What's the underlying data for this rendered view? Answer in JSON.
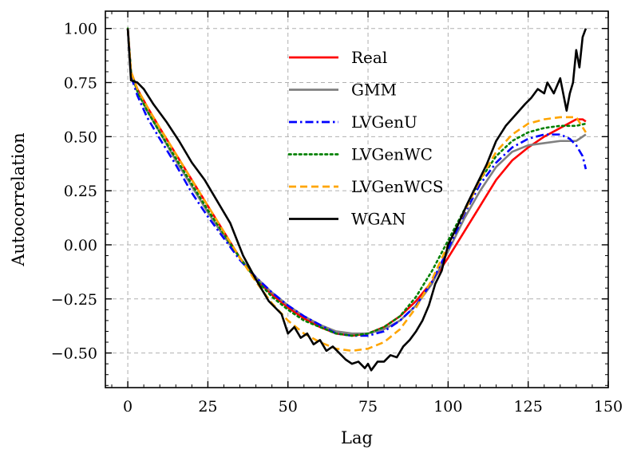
{
  "chart_data": {
    "type": "line",
    "title": "",
    "xlabel": "Lag",
    "ylabel": "Autocorrelation",
    "xlim": [
      -7,
      150
    ],
    "ylim": [
      -0.66,
      1.08
    ],
    "xticks": [
      0,
      25,
      50,
      75,
      100,
      125,
      150
    ],
    "xtick_labels": [
      "0",
      "25",
      "50",
      "75",
      "100",
      "125",
      "150"
    ],
    "yticks": [
      1.0,
      0.75,
      0.5,
      0.25,
      0.0,
      -0.25,
      -0.5
    ],
    "ytick_labels": [
      "1.00",
      "0.75",
      "0.50",
      "0.25",
      "0.00",
      "−0.25",
      "−0.50"
    ],
    "grid": true,
    "legend_position": "top-center",
    "series": [
      {
        "name": "Real",
        "color": "#ff0000",
        "style": "solid",
        "points": [
          [
            0,
            1.0
          ],
          [
            1,
            0.8
          ],
          [
            3,
            0.72
          ],
          [
            6,
            0.64
          ],
          [
            10,
            0.54
          ],
          [
            15,
            0.42
          ],
          [
            20,
            0.3
          ],
          [
            25,
            0.18
          ],
          [
            30,
            0.06
          ],
          [
            35,
            -0.06
          ],
          [
            40,
            -0.16
          ],
          [
            45,
            -0.23
          ],
          [
            50,
            -0.29
          ],
          [
            55,
            -0.34
          ],
          [
            60,
            -0.38
          ],
          [
            65,
            -0.41
          ],
          [
            70,
            -0.42
          ],
          [
            75,
            -0.41
          ],
          [
            80,
            -0.38
          ],
          [
            85,
            -0.33
          ],
          [
            90,
            -0.26
          ],
          [
            95,
            -0.17
          ],
          [
            100,
            -0.06
          ],
          [
            105,
            0.06
          ],
          [
            110,
            0.18
          ],
          [
            115,
            0.3
          ],
          [
            120,
            0.39
          ],
          [
            125,
            0.45
          ],
          [
            130,
            0.5
          ],
          [
            135,
            0.54
          ],
          [
            140,
            0.58
          ],
          [
            142,
            0.58
          ],
          [
            143,
            0.57
          ]
        ]
      },
      {
        "name": "GMM",
        "color": "#808080",
        "style": "solid",
        "points": [
          [
            0,
            1.0
          ],
          [
            1,
            0.79
          ],
          [
            3,
            0.71
          ],
          [
            6,
            0.62
          ],
          [
            10,
            0.52
          ],
          [
            15,
            0.39
          ],
          [
            20,
            0.27
          ],
          [
            25,
            0.15
          ],
          [
            30,
            0.04
          ],
          [
            35,
            -0.06
          ],
          [
            40,
            -0.15
          ],
          [
            45,
            -0.22
          ],
          [
            50,
            -0.28
          ],
          [
            55,
            -0.33
          ],
          [
            60,
            -0.37
          ],
          [
            65,
            -0.4
          ],
          [
            70,
            -0.41
          ],
          [
            75,
            -0.41
          ],
          [
            80,
            -0.39
          ],
          [
            85,
            -0.35
          ],
          [
            90,
            -0.28
          ],
          [
            95,
            -0.18
          ],
          [
            100,
            -0.03
          ],
          [
            105,
            0.12
          ],
          [
            110,
            0.25
          ],
          [
            115,
            0.36
          ],
          [
            120,
            0.43
          ],
          [
            125,
            0.46
          ],
          [
            130,
            0.47
          ],
          [
            135,
            0.48
          ],
          [
            140,
            0.48
          ],
          [
            143,
            0.51
          ]
        ]
      },
      {
        "name": "LVGenU",
        "color": "#0000ff",
        "style": "dashdot",
        "points": [
          [
            0,
            1.0
          ],
          [
            1,
            0.78
          ],
          [
            3,
            0.69
          ],
          [
            6,
            0.59
          ],
          [
            10,
            0.49
          ],
          [
            15,
            0.37
          ],
          [
            20,
            0.24
          ],
          [
            25,
            0.13
          ],
          [
            30,
            0.03
          ],
          [
            35,
            -0.07
          ],
          [
            40,
            -0.15
          ],
          [
            45,
            -0.22
          ],
          [
            50,
            -0.28
          ],
          [
            55,
            -0.33
          ],
          [
            60,
            -0.37
          ],
          [
            65,
            -0.41
          ],
          [
            70,
            -0.42
          ],
          [
            75,
            -0.42
          ],
          [
            80,
            -0.4
          ],
          [
            85,
            -0.35
          ],
          [
            90,
            -0.28
          ],
          [
            95,
            -0.17
          ],
          [
            100,
            -0.02
          ],
          [
            105,
            0.14
          ],
          [
            110,
            0.28
          ],
          [
            115,
            0.38
          ],
          [
            120,
            0.45
          ],
          [
            125,
            0.49
          ],
          [
            130,
            0.51
          ],
          [
            135,
            0.51
          ],
          [
            138,
            0.49
          ],
          [
            140,
            0.46
          ],
          [
            142,
            0.41
          ],
          [
            143,
            0.35
          ]
        ]
      },
      {
        "name": "LVGenWC",
        "color": "#008000",
        "style": "dotted",
        "points": [
          [
            0,
            1.0
          ],
          [
            1,
            0.8
          ],
          [
            3,
            0.71
          ],
          [
            6,
            0.62
          ],
          [
            10,
            0.52
          ],
          [
            15,
            0.4
          ],
          [
            20,
            0.28
          ],
          [
            25,
            0.16
          ],
          [
            30,
            0.05
          ],
          [
            35,
            -0.06
          ],
          [
            40,
            -0.16
          ],
          [
            45,
            -0.24
          ],
          [
            50,
            -0.3
          ],
          [
            55,
            -0.35
          ],
          [
            60,
            -0.38
          ],
          [
            65,
            -0.41
          ],
          [
            70,
            -0.42
          ],
          [
            75,
            -0.41
          ],
          [
            80,
            -0.38
          ],
          [
            85,
            -0.33
          ],
          [
            90,
            -0.24
          ],
          [
            95,
            -0.12
          ],
          [
            100,
            0.02
          ],
          [
            105,
            0.16
          ],
          [
            110,
            0.3
          ],
          [
            115,
            0.41
          ],
          [
            120,
            0.48
          ],
          [
            125,
            0.52
          ],
          [
            130,
            0.54
          ],
          [
            135,
            0.55
          ],
          [
            140,
            0.55
          ],
          [
            143,
            0.56
          ]
        ]
      },
      {
        "name": "LVGenWCS",
        "color": "#ffa500",
        "style": "dashed",
        "points": [
          [
            0,
            1.0
          ],
          [
            1,
            0.8
          ],
          [
            3,
            0.72
          ],
          [
            6,
            0.64
          ],
          [
            10,
            0.54
          ],
          [
            15,
            0.42
          ],
          [
            20,
            0.3
          ],
          [
            25,
            0.18
          ],
          [
            30,
            0.06
          ],
          [
            35,
            -0.06
          ],
          [
            40,
            -0.17
          ],
          [
            45,
            -0.27
          ],
          [
            50,
            -0.35
          ],
          [
            55,
            -0.41
          ],
          [
            60,
            -0.45
          ],
          [
            65,
            -0.48
          ],
          [
            70,
            -0.49
          ],
          [
            75,
            -0.48
          ],
          [
            80,
            -0.45
          ],
          [
            85,
            -0.39
          ],
          [
            90,
            -0.29
          ],
          [
            95,
            -0.16
          ],
          [
            100,
            0.0
          ],
          [
            105,
            0.15
          ],
          [
            110,
            0.3
          ],
          [
            115,
            0.43
          ],
          [
            120,
            0.51
          ],
          [
            125,
            0.56
          ],
          [
            130,
            0.58
          ],
          [
            135,
            0.59
          ],
          [
            140,
            0.59
          ],
          [
            143,
            0.52
          ]
        ]
      },
      {
        "name": "WGAN",
        "color": "#000000",
        "style": "solid",
        "points": [
          [
            0,
            1.0
          ],
          [
            1,
            0.76
          ],
          [
            3,
            0.75
          ],
          [
            5,
            0.72
          ],
          [
            8,
            0.65
          ],
          [
            12,
            0.57
          ],
          [
            16,
            0.48
          ],
          [
            20,
            0.38
          ],
          [
            24,
            0.3
          ],
          [
            28,
            0.2
          ],
          [
            32,
            0.1
          ],
          [
            36,
            -0.05
          ],
          [
            40,
            -0.16
          ],
          [
            44,
            -0.26
          ],
          [
            48,
            -0.32
          ],
          [
            50,
            -0.41
          ],
          [
            52,
            -0.38
          ],
          [
            54,
            -0.43
          ],
          [
            56,
            -0.41
          ],
          [
            58,
            -0.46
          ],
          [
            60,
            -0.44
          ],
          [
            62,
            -0.49
          ],
          [
            64,
            -0.47
          ],
          [
            66,
            -0.5
          ],
          [
            68,
            -0.53
          ],
          [
            70,
            -0.55
          ],
          [
            72,
            -0.54
          ],
          [
            74,
            -0.57
          ],
          [
            75,
            -0.55
          ],
          [
            76,
            -0.58
          ],
          [
            78,
            -0.54
          ],
          [
            80,
            -0.54
          ],
          [
            82,
            -0.51
          ],
          [
            84,
            -0.52
          ],
          [
            86,
            -0.47
          ],
          [
            88,
            -0.44
          ],
          [
            90,
            -0.4
          ],
          [
            92,
            -0.35
          ],
          [
            94,
            -0.28
          ],
          [
            96,
            -0.18
          ],
          [
            98,
            -0.12
          ],
          [
            100,
            0.0
          ],
          [
            103,
            0.09
          ],
          [
            106,
            0.19
          ],
          [
            109,
            0.28
          ],
          [
            112,
            0.37
          ],
          [
            115,
            0.48
          ],
          [
            118,
            0.55
          ],
          [
            121,
            0.6
          ],
          [
            124,
            0.65
          ],
          [
            126,
            0.68
          ],
          [
            128,
            0.72
          ],
          [
            130,
            0.7
          ],
          [
            131,
            0.75
          ],
          [
            133,
            0.7
          ],
          [
            135,
            0.77
          ],
          [
            137,
            0.62
          ],
          [
            138,
            0.7
          ],
          [
            139,
            0.75
          ],
          [
            140,
            0.9
          ],
          [
            141,
            0.82
          ],
          [
            142,
            0.96
          ],
          [
            143,
            1.0
          ]
        ]
      }
    ]
  }
}
